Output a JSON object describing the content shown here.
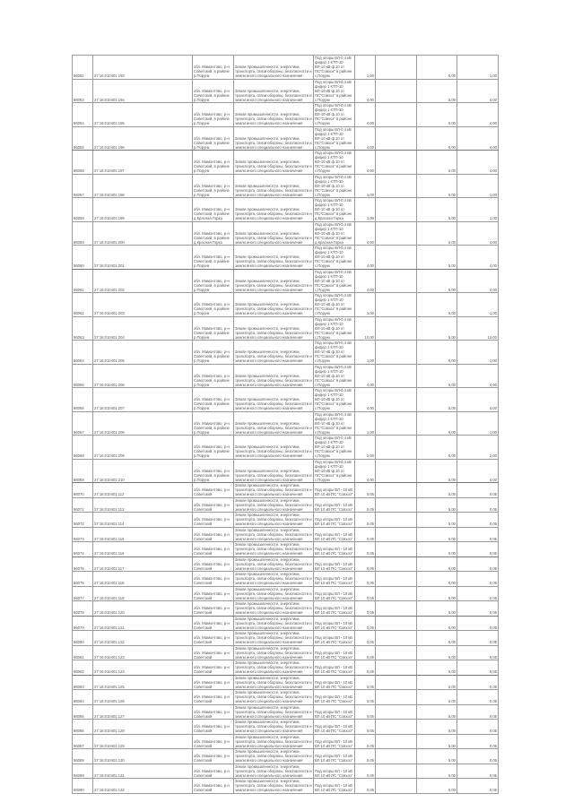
{
  "table": {
    "rows": [
      {
        "id": "86052",
        "cad": "27:16:010401:193",
        "addr": "обл. Мамонтово, р-н Советский, в районе р.Порунк",
        "cat": "Земли промышленности, энергетики, транспорта, связи обороны, безопасности и земли иного специального назначения",
        "desc": "Под опоры ВЛ-0,4 кВ фидер 1 КТП-10 ВЛ-10 кВ ф.10 от ПС\"Совхоз\" в районе с.Порунк",
        "area": "1,00",
        "price": "5,00",
        "total": "1,00"
      },
      {
        "id": "86053",
        "cad": "27:16:010401:194",
        "addr": "обл. Мамонтово, р-н Советский, в районе р.Порунк",
        "cat": "Земли промышленности, энергетики, транспорта, связи обороны, безопасности и земли иного специального назначения",
        "desc": "Под опоры ВЛ-0,4 кВ фидер 1 КТП-10 ВЛ-10 кВ ф.10 от ПС\"Совхоз\" в районе с.Порунк",
        "area": "4,00",
        "price": "5,00",
        "total": "4,00"
      },
      {
        "id": "86054",
        "cad": "27:16:010401:195",
        "addr": "обл. Мамонтово, р-н Советский, в районе р.Порунк",
        "cat": "Земли промышленности, энергетики, транспорта, связи обороны, безопасности и земли иного специального назначения",
        "desc": "Под опоры ВЛ-0,4 кВ фидер 1 КТП-10 ВЛ-10 кВ ф.10 от ПС\"Совхоз\" в районе с.Порунк",
        "area": "4,00",
        "price": "5,00",
        "total": "4,00"
      },
      {
        "id": "86055",
        "cad": "27:16:010401:196",
        "addr": "обл. Мамонтово, р-н Советский, в районе р.Порунк",
        "cat": "Земли промышленности, энергетики, транспорта, связи обороны, безопасности и земли иного специального назначения",
        "desc": "Под опоры ВЛ-0,4 кВ фидер 1 КТП-10 ВЛ-10 кВ ф.10 от ПС\"Совхоз\" в районе с.Порунк",
        "area": "4,00",
        "price": "5,00",
        "total": "4,00"
      },
      {
        "id": "86056",
        "cad": "27:16:010401:197",
        "addr": "обл. Мамонтово, р-н Советский, в районе р.Порунк",
        "cat": "Земли промышленности, энергетики, транспорта, связи обороны, безопасности и земли иного специального назначения",
        "desc": "Под опоры ВЛ-0,4 кВ фидер 1 КТП-10 ВЛ-10 кВ ф.10 от ПС\"Совхоз\" в районе с.Порунк",
        "area": "4,00",
        "price": "5,00",
        "total": "4,00"
      },
      {
        "id": "86057",
        "cad": "27:16:010401:198",
        "addr": "обл. Мамонтово, р-н Советский, в районе р.Порунк",
        "cat": "Земли промышленности, энергетики, транспорта, связи обороны, безопасности и земли иного специального назначения",
        "desc": "Под опоры ВЛ-0,4 кВ фидер 1 КТП-10 ВЛ-10 кВ ф.10 от ПС\"Совхоз\" в районе с.Порунк",
        "area": "1,00",
        "price": "5,00",
        "total": "1,00"
      },
      {
        "id": "86058",
        "cad": "27:16:010401:199",
        "addr": "обл. Мамонтово, р-н Советский, в районе д.Красная Горка",
        "cat": "Земли промышленности, энергетики, транспорта, связи обороны, безопасности и земли иного специального назначения",
        "desc": "Под опоры ВЛ-0,4 кВ фидер 1 КТП-10 ВЛ-10 кВ ф.10 от ПС\"Совхоз\" в районе д.Красная Горка",
        "area": "1,00",
        "price": "5,00",
        "total": "1,00"
      },
      {
        "id": "86059",
        "cad": "27:16:010401:200",
        "addr": "обл. Мамонтово, р-н Советский, в районе д.Красная Горка",
        "cat": "Земли промышленности, энергетики, транспорта, связи обороны, безопасности и земли иного специального назначения",
        "desc": "Под опоры ВЛ-0,4 кВ фидер 1 КТП-10 ВЛ-10 кВ ф.10 от ПС\"Совхоз\" в районе д.Красная Горка",
        "area": "4,00",
        "price": "5,00",
        "total": "4,00"
      },
      {
        "id": "86060",
        "cad": "27:16:010401:201",
        "addr": "обл. Мамонтово, р-н Советский, в районе р.Порунк",
        "cat": "Земли промышленности, энергетики, транспорта, связи обороны, безопасности и земли иного специального назначения",
        "desc": "Под опоры ВЛ-0,4 кВ фидер 1 КТП-10 ВЛ-10 кВ ф.10 от ПС\"Совхоз\" в районе с.Порунк",
        "area": "4,00",
        "price": "5,00",
        "total": "4,00"
      },
      {
        "id": "86061",
        "cad": "27:16:010401:202",
        "addr": "обл. Мамонтово, р-н Советский, в районе р.Порунк",
        "cat": "Земли промышленности, энергетики, транспорта, связи обороны, безопасности и земли иного специального назначения",
        "desc": "Под опоры ВЛ-0,4 кВ фидер 1 КТП-10 ВЛ-10 кВ ф.10 от ПС\"Совхоз\" в районе с.Порунк",
        "area": "4,00",
        "price": "5,00",
        "total": "4,00"
      },
      {
        "id": "86062",
        "cad": "27:16:010401:203",
        "addr": "обл. Мамонтово, р-н Советский, в районе р.Порунк",
        "cat": "Земли промышленности, энергетики, транспорта, связи обороны, безопасности и земли иного специального назначения",
        "desc": "Под опоры ВЛ-0,4 кВ фидер 1 КТП-10 ВЛ-10 кВ ф.10 от ПС\"Совхоз\" в районе с.Порунк",
        "area": "1,00",
        "price": "5,00",
        "total": "1,00"
      },
      {
        "id": "86063",
        "cad": "27:16:010401:204",
        "addr": "обл. Мамонтово, р-н Советский, в районе р.Порунк",
        "cat": "Земли промышленности, энергетики, транспорта, связи обороны, безопасности и земли иного специального назначения",
        "desc": "Под опоры ВЛ-0,4 кВ фидер 1 КТП-10 ВЛ-10 кВ ф.10 от ПС\"Совхоз\" в районе с.Порунк",
        "area": "10,00",
        "price": "5,00",
        "total": "12,00"
      },
      {
        "id": "86064",
        "cad": "27:16:010401:205",
        "addr": "обл. Мамонтово, р-н Советский, в районе р.Порунк",
        "cat": "Земли промышленности, энергетики, транспорта, связи обороны, безопасности и земли иного специального назначения",
        "desc": "Под опоры ВЛ-0,4 кВ фидер 1 КТП-10 ВЛ-10 кВ ф.10 от ПС\"Совхоз\" в районе с.Порунк",
        "area": "1,00",
        "price": "5,00",
        "total": "1,00"
      },
      {
        "id": "86065",
        "cad": "27:16:010401:206",
        "addr": "обл. Мамонтово, р-н Советский, в районе р.Порунк",
        "cat": "Земли промышленности, энергетики, транспорта, связи обороны, безопасности и земли иного специального назначения",
        "desc": "Под опоры ВЛ-0,4 кВ фидер 1 КТП-10 ВЛ-10 кВ ф.10 от ПС\"Совхоз\" в районе с.Порунк",
        "area": "4,00",
        "price": "5,00",
        "total": "4,00"
      },
      {
        "id": "86066",
        "cad": "27:16:010401:207",
        "addr": "обл. Мамонтово, р-н Советский, в районе р.Порунк",
        "cat": "Земли промышленности, энергетики, транспорта, связи обороны, безопасности и земли иного специального назначения",
        "desc": "Под опоры ВЛ-0,4 кВ фидер 1 КТП-10 ВЛ-10 кВ ф.10 от ПС\"Совхоз\" в районе с.Порунк",
        "area": "4,00",
        "price": "5,00",
        "total": "4,00"
      },
      {
        "id": "86067",
        "cad": "27:16:010401:208",
        "addr": "обл. Мамонтово, р-н Советский, в районе р.Порунк",
        "cat": "Земли промышленности, энергетики, транспорта, связи обороны, безопасности и земли иного специального назначения",
        "desc": "Под опоры ВЛ-0,4 кВ фидер 1 КТП-10 ВЛ-10 кВ ф.10 от ПС\"Совхоз\" в районе с.Порунк",
        "area": "1,00",
        "price": "5,00",
        "total": "1,00"
      },
      {
        "id": "86068",
        "cad": "27:16:010401:209",
        "addr": "обл. Мамонтово, р-н Советский, в районе р.Порунк",
        "cat": "Земли промышленности, энергетики, транспорта, связи обороны, безопасности и земли иного специального назначения",
        "desc": "Под опоры ВЛ-0,4 кВ фидер 1 КТП-10 ВЛ-10 кВ ф.10 от ПС\"Совхоз\" в районе с.Порунк",
        "area": "2,00",
        "price": "5,00",
        "total": "2,00"
      },
      {
        "id": "86069",
        "cad": "27:16:010401:210",
        "addr": "обл. Мамонтово, р-н Советский, в районе р.Порунк",
        "cat": "Земли промышленности, энергетики, транспорта, связи обороны, безопасности и земли иного специального назначения",
        "desc": "Под опоры ВЛ-0,4 кВ фидер 1 КТП-10 ВЛ-10 кВ ф.10 от ПС\"Совхоз\" в районе с.Порунк",
        "area": "4,00",
        "price": "5,00",
        "total": "4,00"
      },
      {
        "id": "86070",
        "cad": "27:16:010401:112",
        "addr": "обл. Мамонтово, р-н Советский",
        "cat": "Земли промышленности, энергетики, транспорта, связи обороны, безопасности и земли иного специального назначения",
        "desc": "Под опоры ВЛ - 10 кВ ВЛ 10 кВ ПС \"Совхоз\"",
        "area": "0,05",
        "price": "5,00",
        "total": "0,05"
      },
      {
        "id": "86071",
        "cad": "27:16:010401:113",
        "addr": "обл. Мамонтово, р-н Советский",
        "cat": "Земли промышленности, энергетики, транспорта, связи обороны, безопасности и земли иного специального назначения",
        "desc": "Под опоры ВЛ - 10 кВ ВЛ 10 кВ ПС \"Совхоз\"",
        "area": "0,05",
        "price": "5,00",
        "total": "0,05"
      },
      {
        "id": "86072",
        "cad": "27:16:010401:114",
        "addr": "обл. Мамонтово, р-н Советский",
        "cat": "Земли промышленности, энергетики, транспорта, связи обороны, безопасности и земли иного специального назначения",
        "desc": "Под опоры ВЛ - 10 кВ ВЛ 10 кВ ПС \"Совхоз\"",
        "area": "0,05",
        "price": "5,00",
        "total": "0,05"
      },
      {
        "id": "86073",
        "cad": "27:16:010401:115",
        "addr": "обл. Мамонтово, р-н Советский",
        "cat": "Земли промышленности, энергетики, транспорта, связи обороны, безопасности и земли иного специального назначения",
        "desc": "Под опоры ВЛ - 10 кВ ВЛ 10 кВ ПС \"Совхоз\"",
        "area": "0,05",
        "price": "5,00",
        "total": "0,05"
      },
      {
        "id": "86074",
        "cad": "27:16:010401:116",
        "addr": "обл. Мамонтово, р-н Советский",
        "cat": "Земли промышленности, энергетики, транспорта, связи обороны, безопасности и земли иного специального назначения",
        "desc": "Под опоры ВЛ - 10 кВ ВЛ 10 кВ ПС \"Совхоз\"",
        "area": "0,05",
        "price": "5,00",
        "total": "0,05"
      },
      {
        "id": "86075",
        "cad": "27:16:010401:117",
        "addr": "обл. Мамонтово, р-н Советский",
        "cat": "Земли промышленности, энергетики, транспорта, связи обороны, безопасности и земли иного специального назначения",
        "desc": "Под опоры ВЛ - 10 кВ ВЛ 10 кВ ПС \"Совхоз\"",
        "area": "0,05",
        "price": "5,00",
        "total": "0,05"
      },
      {
        "id": "86076",
        "cad": "27:16:010401:118",
        "addr": "обл. Мамонтово, р-н Советский",
        "cat": "Земли промышленности, энергетики, транспорта, связи обороны, безопасности и земли иного специального назначения",
        "desc": "Под опоры ВЛ - 10 кВ ВЛ 10 кВ ПС \"Совхоз\"",
        "area": "0,05",
        "price": "5,00",
        "total": "0,05"
      },
      {
        "id": "86077",
        "cad": "27:16:010401:119",
        "addr": "обл. Мамонтово, р-н Советский",
        "cat": "Земли промышленности, энергетики, транспорта, связи обороны, безопасности и земли иного специального назначения",
        "desc": "Под опоры ВЛ - 10 кВ ВЛ 10 кВ ПС \"Совхоз\"",
        "area": "0,05",
        "price": "5,00",
        "total": "0,05"
      },
      {
        "id": "86078",
        "cad": "27:16:010401:120",
        "addr": "обл. Мамонтово, р-н Советский",
        "cat": "Земли промышленности, энергетики, транспорта, связи обороны, безопасности и земли иного специального назначения",
        "desc": "Под опоры ВЛ - 10 кВ ВЛ 10 кВ ПС \"Совхоз\"",
        "area": "0,05",
        "price": "5,00",
        "total": "0,05"
      },
      {
        "id": "86079",
        "cad": "27:16:010401:121",
        "addr": "обл. Мамонтово, р-н Советский",
        "cat": "Земли промышленности, энергетики, транспорта, связи обороны, безопасности и земли иного специального назначения",
        "desc": "Под опоры ВЛ - 10 кВ ВЛ 10 кВ ПС \"Совхоз\"",
        "area": "0,05",
        "price": "5,00",
        "total": "0,05"
      },
      {
        "id": "86080",
        "cad": "27:16:010401:122",
        "addr": "обл. Мамонтово, р-н Советский",
        "cat": "Земли промышленности, энергетики, транспорта, связи обороны, безопасности и земли иного специального назначения",
        "desc": "Под опоры ВЛ - 10 кВ ВЛ 10 кВ ПС \"Совхоз\"",
        "area": "0,05",
        "price": "5,00",
        "total": "0,05"
      },
      {
        "id": "86081",
        "cad": "27:16:010401:123",
        "addr": "обл. Мамонтово, р-н Советский",
        "cat": "Земли промышленности, энергетики, транспорта, связи обороны, безопасности и земли иного специального назначения",
        "desc": "Под опоры ВЛ - 10 кВ ВЛ 10 кВ ПС \"Совхоз\"",
        "area": "0,05",
        "price": "5,00",
        "total": "0,05"
      },
      {
        "id": "86082",
        "cad": "27:16:010401:124",
        "addr": "обл. Мамонтово, р-н Советский",
        "cat": "Земли промышленности, энергетики, транспорта, связи обороны, безопасности и земли иного специального назначения",
        "desc": "Под опоры ВЛ - 10 кВ ВЛ 10 кВ ПС \"Совхоз\"",
        "area": "0,05",
        "price": "5,00",
        "total": "0,05"
      },
      {
        "id": "86083",
        "cad": "27:16:010401:125",
        "addr": "обл. Мамонтово, р-н Советский",
        "cat": "Земли промышленности, энергетики, транспорта, связи обороны, безопасности и земли иного специального назначения",
        "desc": "Под опоры ВЛ - 10 кВ ВЛ 10 кВ ПС \"Совхоз\"",
        "area": "0,05",
        "price": "5,00",
        "total": "0,05"
      },
      {
        "id": "86084",
        "cad": "27:16:010401:126",
        "addr": "обл. Мамонтово, р-н Советский",
        "cat": "Земли промышленности, энергетики, транспорта, связи обороны, безопасности и земли иного специального назначения",
        "desc": "Под опоры ВЛ - 10 кВ ВЛ 10 кВ ПС \"Совхоз\"",
        "area": "0,05",
        "price": "5,00",
        "total": "0,05"
      },
      {
        "id": "86085",
        "cad": "27:16:010401:127",
        "addr": "обл. Мамонтово, р-н Советский",
        "cat": "Земли промышленности, энергетики, транспорта, связи обороны, безопасности и земли иного специального назначения",
        "desc": "Под опоры ВЛ - 10 кВ ВЛ 10 кВ ПС \"Совхоз\"",
        "area": "0,05",
        "price": "5,00",
        "total": "0,05"
      },
      {
        "id": "86086",
        "cad": "27:16:010401:128",
        "addr": "обл. Мамонтово, р-н Советский",
        "cat": "Земли промышленности, энергетики, транспорта, связи обороны, безопасности и земли иного специального назначения",
        "desc": "Под опоры ВЛ - 10 кВ ВЛ 10 кВ ПС \"Совхоз\"",
        "area": "0,05",
        "price": "5,00",
        "total": "0,05"
      },
      {
        "id": "86087",
        "cad": "27:16:010401:129",
        "addr": "обл. Мамонтово, р-н Советский",
        "cat": "Земли промышленности, энергетики, транспорта, связи обороны, безопасности и земли иного специального назначения",
        "desc": "Под опоры ВЛ - 10 кВ ВЛ 10 кВ ПС \"Совхоз\"",
        "area": "0,05",
        "price": "5,00",
        "total": "0,05"
      },
      {
        "id": "86088",
        "cad": "27:16:010401:130",
        "addr": "обл. Мамонтово, р-н Советский",
        "cat": "Земли промышленности, энергетики, транспорта, связи обороны, безопасности и земли иного специального назначения",
        "desc": "Под опоры ВЛ - 10 кВ ВЛ 10 кВ ПС \"Совхоз\"",
        "area": "0,05",
        "price": "5,00",
        "total": "0,05"
      },
      {
        "id": "86089",
        "cad": "27:16:010401:131",
        "addr": "обл. Мамонтово, р-н Советский",
        "cat": "Земли промышленности, энергетики, транспорта, связи обороны, безопасности и земли иного специального назначения",
        "desc": "Под опоры ВЛ - 10 кВ ВЛ 10 кВ ПС \"Совхоз\"",
        "area": "0,05",
        "price": "5,00",
        "total": "0,05"
      },
      {
        "id": "86090",
        "cad": "27:16:010401:132",
        "addr": "обл. Мамонтово, р-н Советский",
        "cat": "Земли промышленности, энергетики, транспорта, связи обороны, безопасности и земли иного специального назначения",
        "desc": "Под опоры ВЛ - 10 кВ ВЛ 10 кВ ПС \"Совхоз\"",
        "area": "0,05",
        "price": "5,00",
        "total": "0,05"
      }
    ]
  }
}
